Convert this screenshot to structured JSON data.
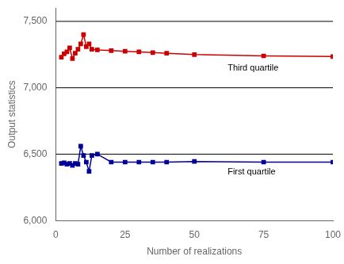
{
  "chart_data": {
    "type": "line",
    "xlabel": "Number of realizations",
    "ylabel": "Output statistics",
    "xlim": [
      0,
      100
    ],
    "ylim": [
      6000,
      7600
    ],
    "xticks": [
      0,
      25,
      50,
      75,
      100
    ],
    "yticks": [
      6000,
      6500,
      7000,
      7500
    ],
    "grid": false,
    "x": [
      2,
      3,
      4,
      5,
      6,
      7,
      8,
      9,
      10,
      11,
      12,
      13,
      15,
      20,
      25,
      30,
      35,
      40,
      50,
      75,
      100
    ],
    "series": [
      {
        "color": "#cc0000",
        "marker": "square",
        "values": [
          7230,
          7255,
          7270,
          7300,
          7220,
          7260,
          7290,
          7330,
          7400,
          7310,
          7330,
          7290,
          7285,
          7280,
          7275,
          7270,
          7265,
          7260,
          7250,
          7240,
          7235
        ]
      },
      {
        "color": "#000099",
        "marker": "square",
        "values": [
          6430,
          6435,
          6425,
          6430,
          6415,
          6430,
          6425,
          6560,
          6490,
          6440,
          6370,
          6490,
          6500,
          6440,
          6440,
          6440,
          6440,
          6440,
          6445,
          6440,
          6440
        ]
      }
    ],
    "hlines": [
      6500,
      7000,
      7500
    ],
    "annotations": [
      {
        "text": "Third quartile",
        "x": 62,
        "y": 7190
      },
      {
        "text": "First quartile",
        "x": 62,
        "y": 6410
      }
    ]
  }
}
